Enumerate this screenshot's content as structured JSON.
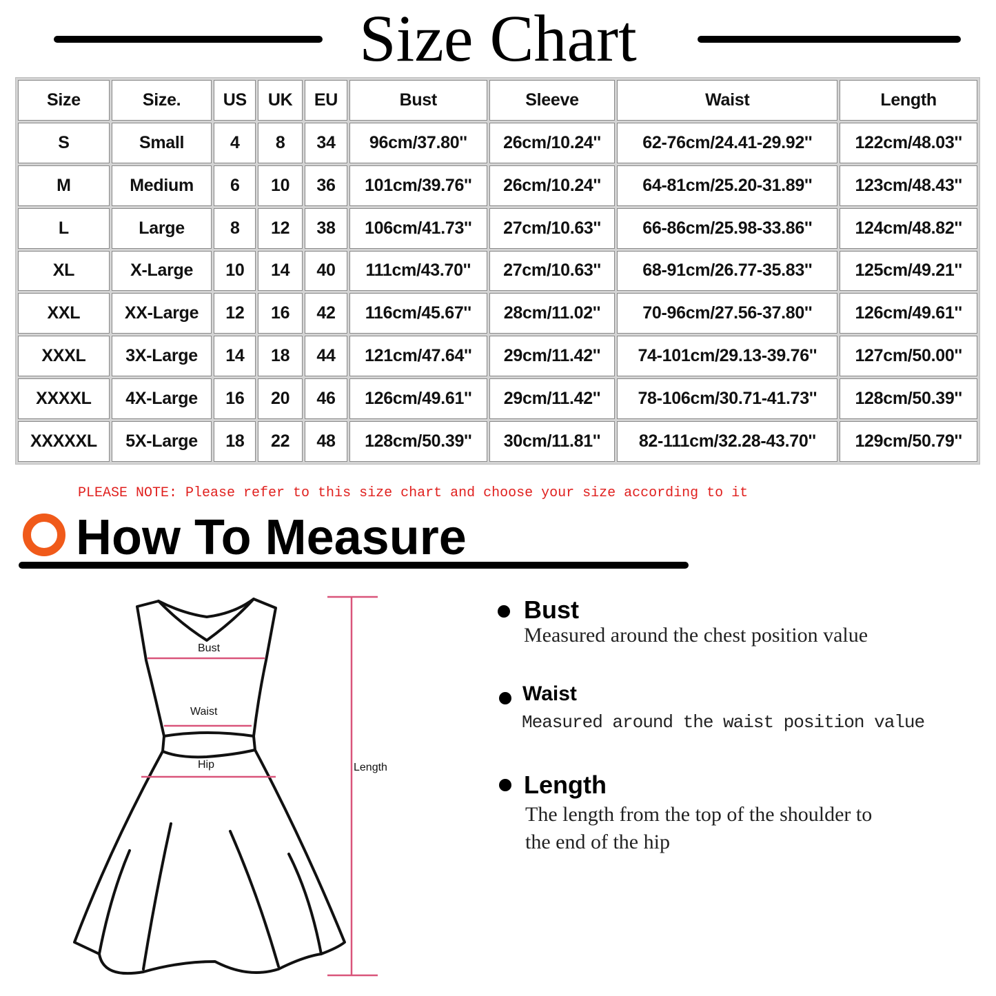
{
  "title": "Size Chart",
  "table": {
    "headers": [
      "Size",
      "Size.",
      "US",
      "UK",
      "EU",
      "Bust",
      "Sleeve",
      "Waist",
      "Length"
    ],
    "rows": [
      [
        "S",
        "Small",
        "4",
        "8",
        "34",
        "96cm/37.80''",
        "26cm/10.24''",
        "62-76cm/24.41-29.92''",
        "122cm/48.03''"
      ],
      [
        "M",
        "Medium",
        "6",
        "10",
        "36",
        "101cm/39.76''",
        "26cm/10.24''",
        "64-81cm/25.20-31.89''",
        "123cm/48.43''"
      ],
      [
        "L",
        "Large",
        "8",
        "12",
        "38",
        "106cm/41.73''",
        "27cm/10.63''",
        "66-86cm/25.98-33.86''",
        "124cm/48.82''"
      ],
      [
        "XL",
        "X-Large",
        "10",
        "14",
        "40",
        "111cm/43.70''",
        "27cm/10.63''",
        "68-91cm/26.77-35.83''",
        "125cm/49.21''"
      ],
      [
        "XXL",
        "XX-Large",
        "12",
        "16",
        "42",
        "116cm/45.67''",
        "28cm/11.02''",
        "70-96cm/27.56-37.80''",
        "126cm/49.61''"
      ],
      [
        "XXXL",
        "3X-Large",
        "14",
        "18",
        "44",
        "121cm/47.64''",
        "29cm/11.42''",
        "74-101cm/29.13-39.76''",
        "127cm/50.00''"
      ],
      [
        "XXXXL",
        "4X-Large",
        "16",
        "20",
        "46",
        "126cm/49.61''",
        "29cm/11.42''",
        "78-106cm/30.71-41.73''",
        "128cm/50.39''"
      ],
      [
        "XXXXXL",
        "5X-Large",
        "18",
        "22",
        "48",
        "128cm/50.39''",
        "30cm/11.81''",
        "82-111cm/32.28-43.70''",
        "129cm/50.79''"
      ]
    ]
  },
  "note": "PLEASE NOTE: Please refer to this size chart and choose your size according to it",
  "how_to": {
    "title": "How To Measure",
    "icon": "orange-ring-icon",
    "accent": "#f05a1a",
    "diagram_labels": {
      "bust": "Bust",
      "waist": "Waist",
      "hip": "Hip",
      "length": "Length"
    },
    "items": [
      {
        "name": "Bust",
        "desc": [
          "Measured around the chest position value"
        ]
      },
      {
        "name": "Waist",
        "desc": [
          "Measured around the waist position value"
        ]
      },
      {
        "name": "Length",
        "desc": [
          "The length from the top of the shoulder to",
          "the end of the hip"
        ]
      }
    ]
  },
  "colors": {
    "note": "#e0201e",
    "measure_line": "#d9547a"
  }
}
